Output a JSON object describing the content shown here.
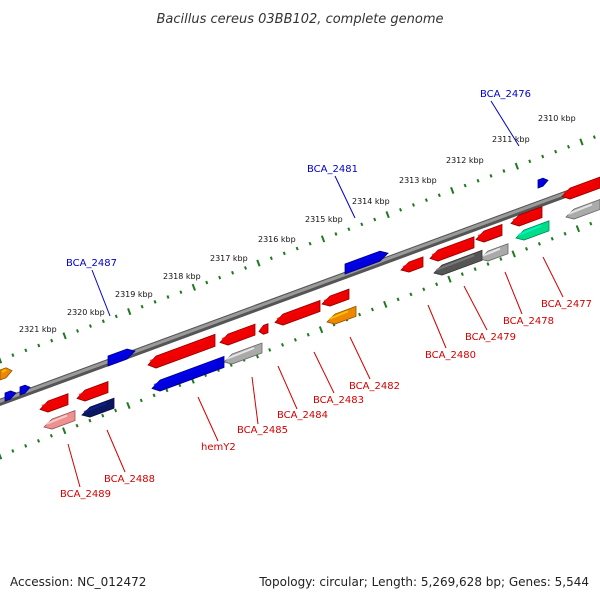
{
  "title": "Bacillus cereus 03BB102, complete genome",
  "footer": {
    "accession": "Accession: NC_012472",
    "summary": "Topology: circular; Length: 5,269,628 bp; Genes: 5,544"
  },
  "colors": {
    "backbone": "#7a7a7a",
    "ruler": "#1f7a1f",
    "reverse_label": "#d40000",
    "forward_label": "#0000cc"
  },
  "ticks": [
    "2310 kbp",
    "2311 kbp",
    "2312 kbp",
    "2313 kbp",
    "2314 kbp",
    "2315 kbp",
    "2316 kbp",
    "2317 kbp",
    "2318 kbp",
    "2319 kbp",
    "2320 kbp",
    "2321 kbp"
  ],
  "forward_labels": [
    "BCA_2476",
    "BCA_2481",
    "BCA_2487"
  ],
  "reverse_labels": [
    "BCA_2477",
    "BCA_2478",
    "BCA_2479",
    "BCA_2480",
    "BCA_2482",
    "BCA_2483",
    "BCA_2484",
    "BCA_2485",
    "hemY2",
    "BCA_2488",
    "BCA_2489"
  ]
}
